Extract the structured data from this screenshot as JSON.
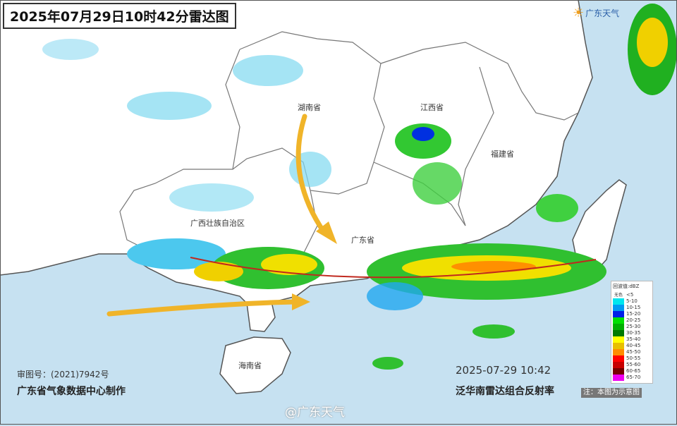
{
  "title": "2025年07月29日10时42分雷达图",
  "logo": {
    "text": "广东天气",
    "icon": "guangdong-weather-logo-icon"
  },
  "provinces": {
    "hunan": "湖南省",
    "jiangxi": "江西省",
    "fujian": "福建省",
    "guangxi": "广西壮族自治区",
    "guangdong": "广东省",
    "hainan": "海南省"
  },
  "footer": {
    "approval": "审图号：(2021)7942号",
    "maker": "广东省气象数据中心制作",
    "time": "2025-07-29 10:42",
    "product": "泛华南雷达组合反射率",
    "note": "注：本图为示意图",
    "watermark": "@广东天气"
  },
  "legend": {
    "title": "回波值:dBZ",
    "items": [
      {
        "label": "<5",
        "name": "无色",
        "color": "#ffffff"
      },
      {
        "label": "5-10",
        "color": "#00e6ee"
      },
      {
        "label": "10-15",
        "color": "#009bf2"
      },
      {
        "label": "15-20",
        "color": "#0020e8"
      },
      {
        "label": "20-25",
        "color": "#00e000"
      },
      {
        "label": "25-30",
        "color": "#00b000"
      },
      {
        "label": "30-35",
        "color": "#007a00"
      },
      {
        "label": "35-40",
        "color": "#ffff00"
      },
      {
        "label": "40-45",
        "color": "#e8c000"
      },
      {
        "label": "45-50",
        "color": "#ff8c00"
      },
      {
        "label": "50-55",
        "color": "#ff0000"
      },
      {
        "label": "55-60",
        "color": "#c80000"
      },
      {
        "label": "60-65",
        "color": "#780000"
      },
      {
        "label": "65-70",
        "color": "#ee00f0"
      }
    ]
  },
  "colors": {
    "sea": "#c6e1f1",
    "land": "#ffffff",
    "arrow": "#f0b429",
    "trough_line": "#c0281e"
  }
}
